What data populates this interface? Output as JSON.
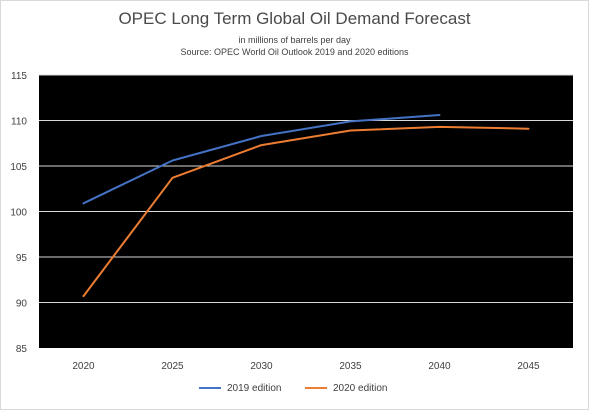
{
  "chart_data": {
    "type": "line",
    "title": "OPEC Long Term Global Oil Demand Forecast",
    "subtitle_lines": [
      "in millions of barrels per day",
      "Source: OPEC World Oil Outlook 2019 and 2020 editions"
    ],
    "xlabel": "",
    "ylabel": "",
    "categories": [
      "2020",
      "2025",
      "2030",
      "2035",
      "2040",
      "2045"
    ],
    "y_ticks": [
      "85",
      "90",
      "95",
      "100",
      "105",
      "110",
      "115"
    ],
    "ylim": [
      85,
      115
    ],
    "grid": "horizontal",
    "plot_background": "#000000",
    "series": [
      {
        "name": "2019 edition",
        "color": "#4472c4",
        "values": [
          100.9,
          105.6,
          108.3,
          109.9,
          110.6,
          null
        ]
      },
      {
        "name": "2020 edition",
        "color": "#ed7d31",
        "values": [
          90.7,
          103.7,
          107.3,
          108.9,
          109.3,
          109.1
        ]
      }
    ],
    "legend": "bottom"
  }
}
